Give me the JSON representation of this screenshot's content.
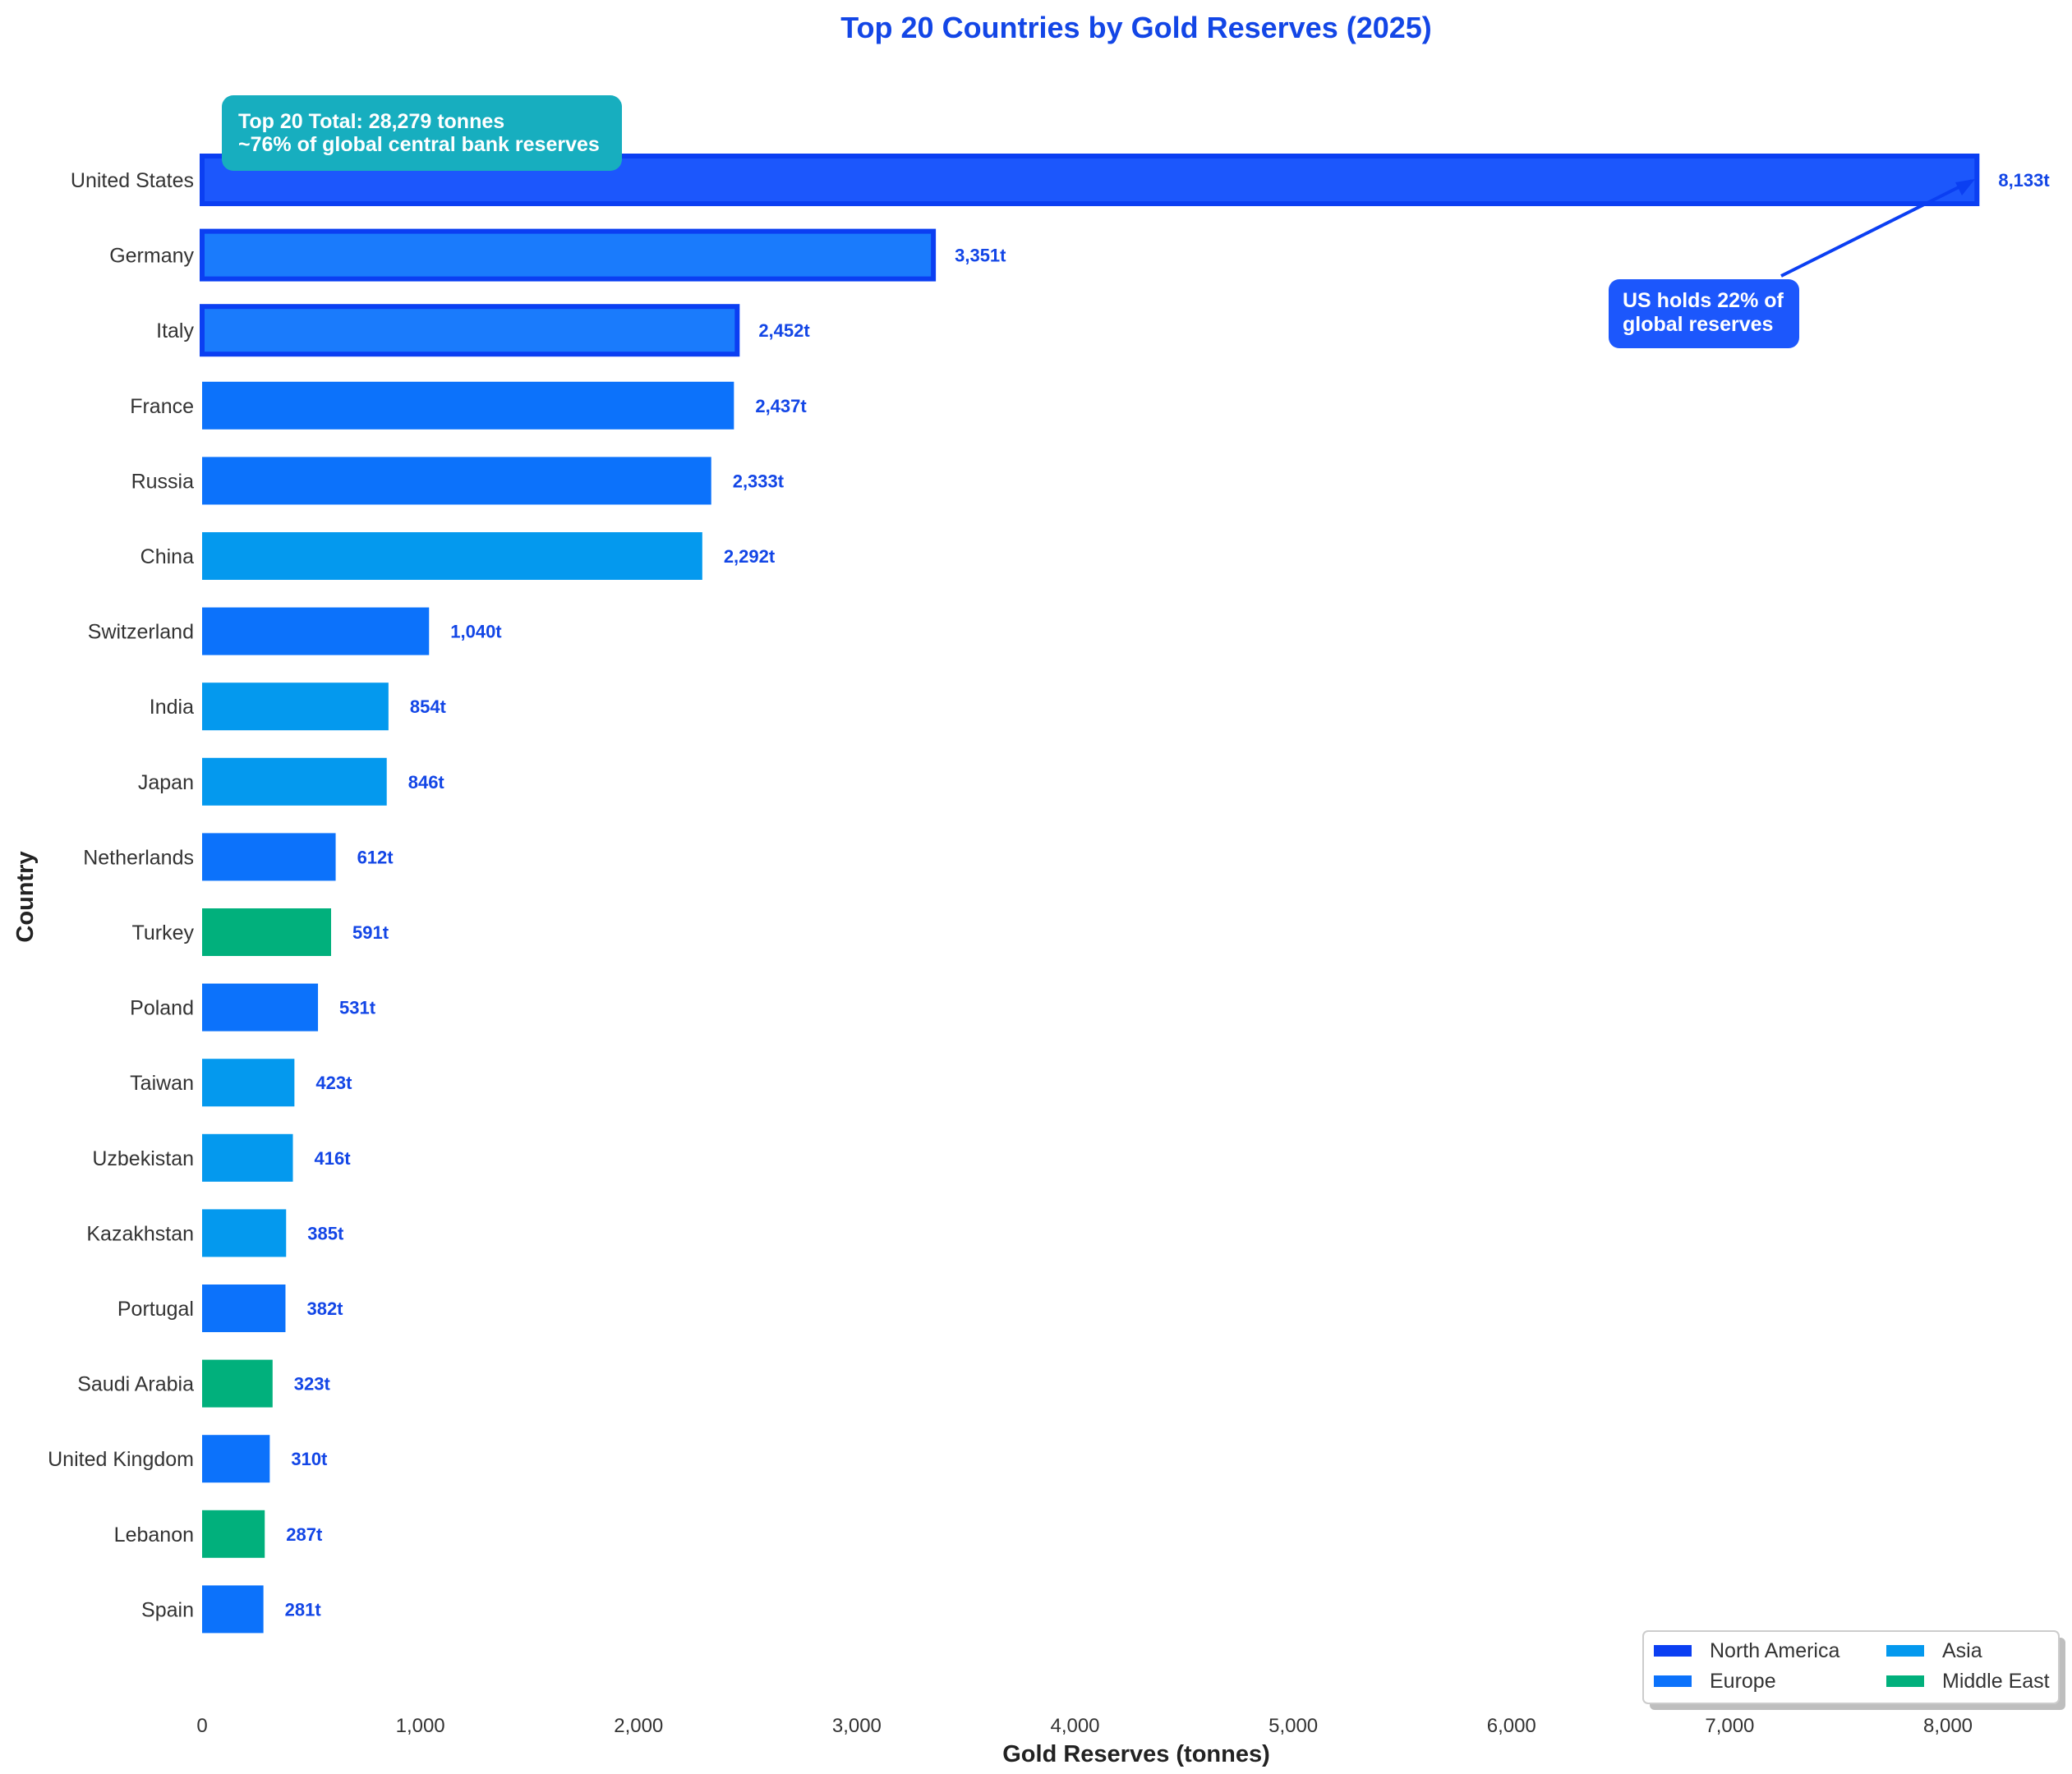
{
  "chart_data": {
    "type": "bar",
    "orientation": "horizontal",
    "title": "Top 20 Countries by Gold Reserves (2025)",
    "xlabel": "Gold Reserves (tonnes)",
    "ylabel": "Country",
    "xlim": [
      0,
      8540
    ],
    "xticks": [
      0,
      1000,
      2000,
      3000,
      4000,
      5000,
      6000,
      7000,
      8000
    ],
    "xtick_labels": [
      "0",
      "1,000",
      "2,000",
      "3,000",
      "4,000",
      "5,000",
      "6,000",
      "7,000",
      "8,000"
    ],
    "grid": false,
    "categories": [
      "United States",
      "Germany",
      "Italy",
      "France",
      "Russia",
      "China",
      "Switzerland",
      "India",
      "Japan",
      "Netherlands",
      "Turkey",
      "Poland",
      "Taiwan",
      "Uzbekistan",
      "Kazakhstan",
      "Portugal",
      "Saudi Arabia",
      "United Kingdom",
      "Lebanon",
      "Spain"
    ],
    "values": [
      8133,
      3351,
      2452,
      2437,
      2333,
      2292,
      1040,
      854,
      846,
      612,
      591,
      531,
      423,
      416,
      385,
      382,
      323,
      310,
      287,
      281
    ],
    "value_labels": [
      "8,133t",
      "3,351t",
      "2,452t",
      "2,437t",
      "2,333t",
      "2,292t",
      "1,040t",
      "854t",
      "846t",
      "612t",
      "591t",
      "531t",
      "423t",
      "416t",
      "385t",
      "382t",
      "323t",
      "310t",
      "287t",
      "281t"
    ],
    "regions": [
      "North America",
      "Europe",
      "Europe",
      "Europe",
      "Europe",
      "Asia",
      "Europe",
      "Asia",
      "Asia",
      "Europe",
      "Middle East",
      "Europe",
      "Asia",
      "Asia",
      "Asia",
      "Europe",
      "Middle East",
      "Europe",
      "Middle East",
      "Europe"
    ],
    "highlighted": [
      "United States",
      "Germany",
      "Italy"
    ],
    "legend": {
      "location": "bottom-right",
      "entries": [
        {
          "name": "North America",
          "color": "#0b3ff2"
        },
        {
          "name": "Asia",
          "color": "#0499ee"
        },
        {
          "name": "Europe",
          "color": "#0c72fb"
        },
        {
          "name": "Middle East",
          "color": "#01b07c"
        }
      ]
    },
    "annotations": {
      "total_box": [
        "Top 20 Total: 28,279 tonnes",
        "~76% of global central bank reserves"
      ],
      "us_note": [
        "US holds 22% of",
        "global reserves"
      ]
    }
  },
  "colors": {
    "North America": "#1c57fc",
    "Europe": "#0c72fb",
    "Europe Highlight": "#1a7bfc",
    "Asia": "#0499ee",
    "Middle East": "#01b07c",
    "highlight_edge": "#0b3ff2",
    "accent": "#1346e6",
    "total_box": "#17aebf"
  }
}
